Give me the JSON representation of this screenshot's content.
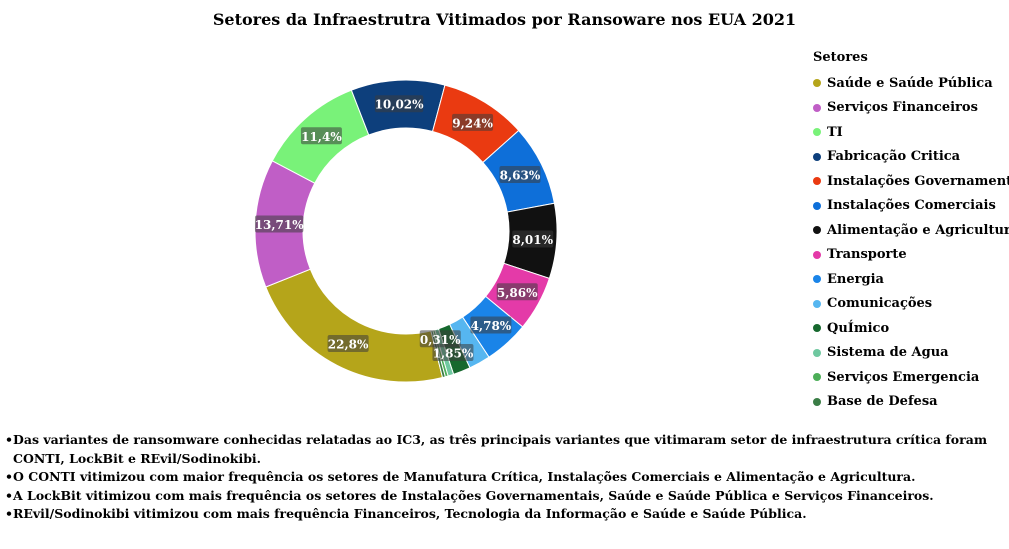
{
  "chart_data": {
    "type": "pie",
    "title": "Setores da Infraestrutra Vitimados por Ransoware nos EUA 2021",
    "legend_title": "Setores",
    "legend_position": "right",
    "slices": [
      {
        "name": "Saúde e Saúde Pública",
        "value": 22.8,
        "label": "22,8%",
        "color": "#b5a51a"
      },
      {
        "name": "Serviços Financeiros",
        "value": 13.71,
        "label": "13,71%",
        "color": "#c05ec6"
      },
      {
        "name": "TI",
        "value": 11.4,
        "label": "11,4%",
        "color": "#79f279"
      },
      {
        "name": "Fabricação Critica",
        "value": 10.02,
        "label": "10,02%",
        "color": "#0d3f7c"
      },
      {
        "name": "Instalações Governamentais",
        "value": 9.24,
        "label": "9,24%",
        "color": "#ea3a11"
      },
      {
        "name": "Instalações Comerciais",
        "value": 8.63,
        "label": "8,63%",
        "color": "#0e6fd9"
      },
      {
        "name": "Alimentação  e Agricultura",
        "value": 8.01,
        "label": "8,01%",
        "color": "#111111"
      },
      {
        "name": "Transporte",
        "value": 5.86,
        "label": "5,86%",
        "color": "#e43aa8"
      },
      {
        "name": "Energia",
        "value": 4.78,
        "label": "4,78%",
        "color": "#1a84e8"
      },
      {
        "name": "Comunicações",
        "value": 2.3,
        "label": "",
        "color": "#56b6f0"
      },
      {
        "name": "QuÍmico",
        "value": 1.85,
        "label": "1,85%",
        "color": "#16682e"
      },
      {
        "name": "Sistema de Agua",
        "value": 0.6,
        "label": "",
        "color": "#6fc8a0"
      },
      {
        "name": "Serviços Emergencia",
        "value": 0.31,
        "label": "0,31%",
        "color": "#4cae58"
      },
      {
        "name": "Base de Defesa",
        "value": 0.3,
        "label": "",
        "color": "#3a7d46"
      }
    ]
  },
  "notes": [
    "Das variantes de ransomware conhecidas relatadas ao IC3, as três principais variantes que vitimaram setor de infraestrutura crítica foram CONTI, LockBit e REvil/Sodinokibi.",
    "O CONTI vitimizou com maior frequência os setores de Manufatura Crítica, Instalações Comerciais e Alimentação e Agricultura.",
    "A LockBit vitimizou com mais frequência os setores de Instalações Governamentais, Saúde e Saúde Pública e Serviços Financeiros.",
    "REvil/Sodinokibi vitimizou com mais frequência  Financeiros, Tecnologia da Informação e Saúde e Saúde Pública."
  ],
  "bullet_char": "•"
}
